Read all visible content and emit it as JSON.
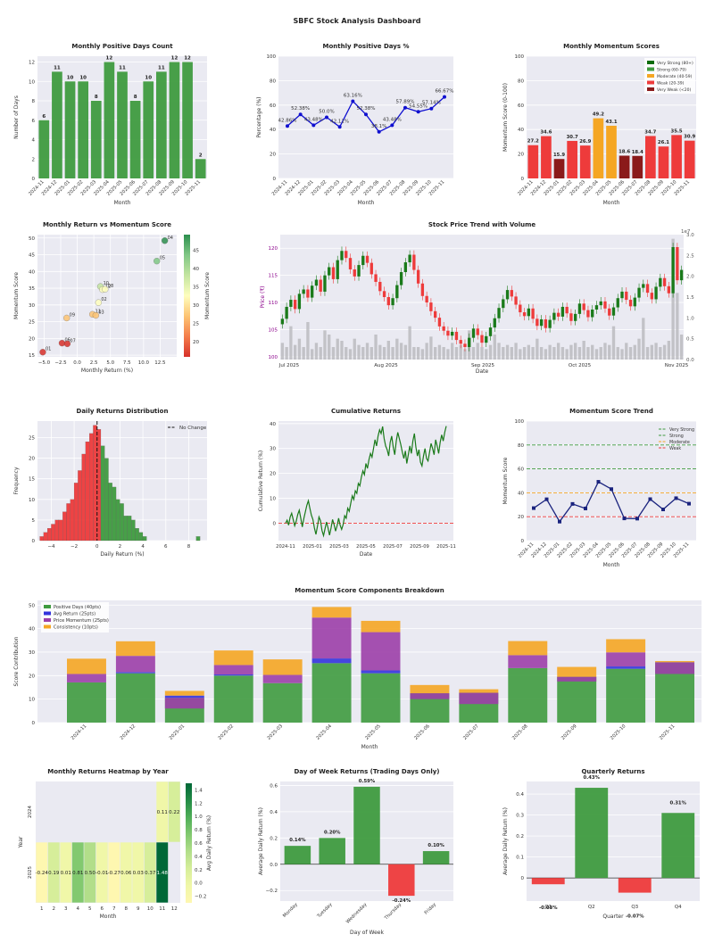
{
  "dashboard_title": "SBFC Stock Analysis Dashboard",
  "colors": {
    "green": "#3f9b3f",
    "red": "#ee3b3b",
    "darkred": "#8b1a1a",
    "orange": "#f5a623",
    "darkgreen": "#1a7a1a",
    "navy": "#1a237e",
    "blue": "#1010d0",
    "purple": "#9c3fa8",
    "panel_bg": "#eaeaf2",
    "volume": "#b8b8bc"
  },
  "chart_data": [
    {
      "id": "positive_days_count",
      "type": "bar",
      "title": "Monthly Positive Days Count",
      "xlabel": "Month",
      "ylabel": "Number of Days",
      "ylim": [
        0,
        12.6
      ],
      "yticks": [
        0,
        2,
        4,
        6,
        8,
        10,
        12
      ],
      "categories": [
        "2024-11",
        "2024-12",
        "2025-01",
        "2025-02",
        "2025-03",
        "2025-04",
        "2025-05",
        "2025-06",
        "2025-07",
        "2025-08",
        "2025-09",
        "2025-10",
        "2025-11"
      ],
      "values": [
        6,
        11,
        10,
        10,
        8,
        12,
        11,
        8,
        10,
        11,
        12,
        12,
        2
      ]
    },
    {
      "id": "positive_days_pct",
      "type": "line",
      "title": "Monthly Positive Days %",
      "xlabel": "Month",
      "ylabel": "Percentage (%)",
      "ylim": [
        0,
        100
      ],
      "yticks": [
        0,
        20,
        40,
        60,
        80,
        100
      ],
      "categories": [
        "2024-11",
        "2024-12",
        "2025-01",
        "2025-02",
        "2025-03",
        "2025-04",
        "2025-05",
        "2025-06",
        "2025-07",
        "2025-08",
        "2025-09",
        "2025-10",
        "2025-11"
      ],
      "values": [
        42.86,
        52.38,
        43.48,
        50.0,
        42.11,
        63.16,
        52.38,
        38.1,
        43.48,
        57.89,
        54.55,
        57.14,
        66.67
      ],
      "labels": [
        "42.86%",
        "52.38%",
        "43.48%",
        "50.0%",
        "42.11%",
        "63.16%",
        "52.38%",
        "38.1%",
        "43.48%",
        "57.89%",
        "54.55%",
        "57.14%",
        "66.67%"
      ]
    },
    {
      "id": "momentum_scores",
      "type": "bar",
      "title": "Monthly Momentum Scores",
      "xlabel": "Month",
      "ylabel": "Momentum Score (0-100)",
      "ylim": [
        0,
        100
      ],
      "yticks": [
        0,
        20,
        40,
        60,
        80,
        100
      ],
      "categories": [
        "2024-11",
        "2024-12",
        "2025-01",
        "2025-02",
        "2025-03",
        "2025-04",
        "2025-05",
        "2025-06",
        "2025-07",
        "2025-08",
        "2025-09",
        "2025-10",
        "2025-11"
      ],
      "values": [
        27.2,
        34.6,
        15.9,
        30.7,
        26.9,
        49.2,
        43.1,
        18.6,
        18.4,
        34.7,
        26.1,
        35.5,
        30.9
      ],
      "legend": [
        {
          "name": "Very Strong (80+)",
          "color": "#0b6b0b"
        },
        {
          "name": "Strong (60-79)",
          "color": "#3f9b3f"
        },
        {
          "name": "Moderate (40-59)",
          "color": "#f5a623"
        },
        {
          "name": "Weak (20-39)",
          "color": "#ee3b3b"
        },
        {
          "name": "Very Weak (<20)",
          "color": "#8b1a1a"
        }
      ],
      "legend_position": "top-right"
    },
    {
      "id": "return_vs_momentum",
      "type": "scatter",
      "title": "Monthly Return vs Momentum Score",
      "xlabel": "Monthly Return (%)",
      "ylabel": "Momentum Score",
      "xlim": [
        -6,
        15
      ],
      "ylim": [
        14.5,
        51
      ],
      "xticks": [
        -5.0,
        -2.5,
        0.0,
        2.5,
        5.0,
        7.5,
        10.0,
        12.5
      ],
      "xtick_labels": [
        "−5.0",
        "−2.5",
        "0.0",
        "2.5",
        "5.0",
        "7.5",
        "10.0",
        "12.5"
      ],
      "yticks": [
        15,
        20,
        25,
        30,
        35,
        40,
        45,
        50
      ],
      "points": [
        {
          "x": -5.2,
          "y": 15.9,
          "label": "01"
        },
        {
          "x": -2.3,
          "y": 18.6,
          "label": "06"
        },
        {
          "x": -1.5,
          "y": 18.4,
          "label": "07"
        },
        {
          "x": 2.3,
          "y": 27.2,
          "label": "11"
        },
        {
          "x": -1.6,
          "y": 26.1,
          "label": "09"
        },
        {
          "x": 2.8,
          "y": 26.9,
          "label": "03"
        },
        {
          "x": 3.2,
          "y": 30.7,
          "label": "02"
        },
        {
          "x": 3.5,
          "y": 35.5,
          "label": "10"
        },
        {
          "x": 3.8,
          "y": 34.6,
          "label": "12"
        },
        {
          "x": 4.2,
          "y": 34.7,
          "label": "08"
        },
        {
          "x": 12.0,
          "y": 43.1,
          "label": "05"
        },
        {
          "x": 13.2,
          "y": 49.2,
          "label": "04"
        }
      ],
      "colorbar": {
        "label": "Momentum Score",
        "ticks": [
          20,
          25,
          30,
          35,
          40,
          45
        ],
        "range": [
          15.9,
          49.2
        ]
      }
    },
    {
      "id": "price_trend",
      "type": "candlestick",
      "title": "Stock Price Trend with Volume",
      "xlabel": "Date",
      "ylabel": "Price (₹)",
      "ylabel_right": "Volume",
      "ylim": [
        99.5,
        122.5
      ],
      "yticks": [
        100,
        105,
        110,
        115,
        120
      ],
      "xtick_labels": [
        "Jul 2025",
        "Aug 2025",
        "Sep 2025",
        "Oct 2025",
        "Nov 2025"
      ],
      "volume_ticks": [
        "0.0",
        "0.5",
        "1.0",
        "1.5",
        "2.0",
        "2.5",
        "3.0"
      ],
      "volume_multiplier": "1e7",
      "closes": [
        107.0,
        109.2,
        110.5,
        108.8,
        111.6,
        112.4,
        110.9,
        113.1,
        114.2,
        112.0,
        115.0,
        116.5,
        114.3,
        117.8,
        119.5,
        118.2,
        116.1,
        114.8,
        116.9,
        118.6,
        117.3,
        115.2,
        113.8,
        112.1,
        111.0,
        109.5,
        110.8,
        113.2,
        115.6,
        117.4,
        118.8,
        116.0,
        113.5,
        111.2,
        110.0,
        108.4,
        107.2,
        105.6,
        104.8,
        103.9,
        104.6,
        103.1,
        102.4,
        101.8,
        103.5,
        105.2,
        104.0,
        102.6,
        103.8,
        105.4,
        107.1,
        109.0,
        110.6,
        112.3,
        111.1,
        109.6,
        108.2,
        107.5,
        108.9,
        107.0,
        105.7,
        106.9,
        105.3,
        106.8,
        108.1,
        107.4,
        109.2,
        108.0,
        106.6,
        107.9,
        109.8,
        108.6,
        107.3,
        108.7,
        109.5,
        110.2,
        108.9,
        107.6,
        109.1,
        110.8,
        112.0,
        110.5,
        109.3,
        110.9,
        112.7,
        113.4,
        111.8,
        110.6,
        112.9,
        114.5,
        113.0,
        111.7,
        120.2,
        114.1,
        116.0
      ],
      "volumes": [
        0.4,
        0.3,
        0.8,
        0.35,
        0.5,
        0.3,
        0.9,
        0.25,
        0.4,
        0.3,
        0.7,
        0.6,
        0.3,
        0.5,
        0.45,
        0.3,
        0.25,
        0.5,
        0.35,
        0.3,
        0.4,
        0.3,
        0.6,
        0.35,
        0.3,
        0.45,
        0.3,
        0.5,
        0.4,
        0.35,
        0.8,
        0.3,
        0.3,
        0.25,
        0.4,
        0.55,
        0.3,
        0.35,
        0.3,
        0.25,
        0.4,
        0.3,
        0.35,
        0.25,
        0.7,
        0.3,
        0.4,
        0.3,
        0.25,
        0.35,
        0.6,
        0.4,
        0.3,
        0.35,
        0.3,
        0.4,
        0.25,
        0.3,
        0.35,
        0.3,
        0.5,
        0.3,
        0.25,
        0.35,
        0.3,
        0.4,
        0.3,
        0.25,
        0.35,
        0.4,
        0.3,
        0.45,
        0.3,
        0.35,
        0.25,
        0.3,
        0.4,
        0.35,
        0.8,
        0.3,
        0.25,
        0.4,
        0.3,
        0.35,
        0.5,
        1.0,
        0.3,
        0.35,
        0.4,
        0.3,
        0.35,
        0.45,
        2.9,
        1.6,
        0.6
      ]
    },
    {
      "id": "daily_returns_dist",
      "type": "histogram",
      "title": "Daily Returns Distribution",
      "xlabel": "Daily Return (%)",
      "ylabel": "Frequency",
      "xlim": [
        -5.2,
        9.6
      ],
      "ylim": [
        0,
        29
      ],
      "xticks": [
        -4,
        -2,
        0,
        2,
        4,
        6,
        8
      ],
      "xtick_labels": [
        "−4",
        "−2",
        "0",
        "2",
        "4",
        "6",
        "8"
      ],
      "yticks": [
        0,
        5,
        10,
        15,
        20,
        25
      ],
      "bin_width": 0.333,
      "bins_start": -5.0,
      "counts": [
        1,
        2,
        3,
        4,
        5,
        5,
        7,
        9,
        10,
        14,
        17,
        21,
        24,
        26,
        28,
        27,
        23,
        20,
        14,
        13,
        10,
        9,
        6,
        6,
        5,
        3,
        2,
        1,
        0,
        0,
        0,
        0,
        0,
        0,
        0,
        0,
        0,
        0,
        0,
        0,
        0,
        1
      ],
      "annotation": "No Change",
      "legend_position": "top-right"
    },
    {
      "id": "cumulative_returns",
      "type": "line",
      "title": "Cumulative Returns",
      "xlabel": "Date",
      "ylabel": "Cumulative Return (%)",
      "ylim": [
        -7,
        41
      ],
      "yticks": [
        0,
        10,
        20,
        30,
        40
      ],
      "xtick_labels": [
        "2024-11",
        "2025-01",
        "2025-03",
        "2025-05",
        "2025-07",
        "2025-09",
        "2025-11"
      ],
      "values": [
        0,
        1.2,
        -0.8,
        2.5,
        4.0,
        1.5,
        -1.0,
        0.8,
        3.5,
        5.2,
        2.0,
        -1.5,
        1.8,
        4.5,
        7.2,
        9.0,
        6.0,
        3.2,
        1.5,
        -2.0,
        -4.5,
        -1.2,
        2.5,
        1.0,
        -3.0,
        -5.0,
        -2.2,
        0.5,
        -1.8,
        -4.8,
        -2.0,
        1.5,
        -0.5,
        -3.2,
        -1.0,
        2.0,
        -0.8,
        -2.5,
        -0.5,
        3.0,
        2.0,
        6.0,
        4.8,
        8.0,
        11.0,
        9.5,
        13.0,
        12.0,
        16.0,
        15.0,
        18.5,
        21.0,
        19.5,
        24.0,
        22.0,
        25.5,
        28.0,
        26.5,
        30.0,
        33.5,
        31.0,
        35.0,
        37.5,
        36.0,
        38.8,
        34.0,
        31.0,
        29.5,
        27.0,
        32.5,
        35.0,
        30.5,
        27.5,
        33.0,
        36.5,
        34.0,
        31.5,
        28.5,
        26.0,
        29.0,
        24.0,
        27.5,
        31.0,
        28.0,
        33.0,
        36.0,
        30.5,
        27.0,
        29.5,
        24.5,
        23.0,
        27.0,
        30.0,
        26.0,
        25.0,
        28.5,
        32.0,
        30.0,
        27.5,
        33.5,
        31.0,
        28.0,
        32.5,
        35.5,
        33.0,
        36.5,
        39.0
      ],
      "reference_line": 0
    },
    {
      "id": "momentum_trend",
      "type": "line",
      "title": "Momentum Score Trend",
      "xlabel": "Month",
      "ylabel": "Momentum Score",
      "ylim": [
        0,
        100
      ],
      "yticks": [
        0,
        20,
        40,
        60,
        80,
        100
      ],
      "categories": [
        "2024-11",
        "2024-12",
        "2025-01",
        "2025-02",
        "2025-03",
        "2025-04",
        "2025-05",
        "2025-06",
        "2025-07",
        "2025-08",
        "2025-09",
        "2025-10",
        "2025-11"
      ],
      "values": [
        27.2,
        34.6,
        15.9,
        30.7,
        26.9,
        49.2,
        43.1,
        18.6,
        18.4,
        34.7,
        26.1,
        35.5,
        30.9
      ],
      "thresholds": [
        {
          "name": "Very Strong",
          "value": 80,
          "color": "#3f9b3f"
        },
        {
          "name": "Strong",
          "value": 60,
          "color": "#3f9b3f"
        },
        {
          "name": "Moderate",
          "value": 40,
          "color": "#f5a623"
        },
        {
          "name": "Weak",
          "value": 20,
          "color": "#ee3b3b"
        }
      ],
      "legend_position": "top-right"
    },
    {
      "id": "score_components",
      "type": "bar",
      "stacked": true,
      "title": "Momentum Score Components Breakdown",
      "xlabel": "Month",
      "ylabel": "Score Contribution",
      "ylim": [
        0,
        52
      ],
      "yticks": [
        0,
        10,
        20,
        30,
        40,
        50
      ],
      "categories": [
        "2024-11",
        "2024-12",
        "2025-01",
        "2025-02",
        "2025-03",
        "2025-04",
        "2025-05",
        "2025-06",
        "2025-07",
        "2025-08",
        "2025-09",
        "2025-10",
        "2025-11"
      ],
      "series": [
        {
          "name": "Positive Days (40pts)",
          "color": "#3f9b3f",
          "values": [
            17.1,
            21.0,
            10.5,
            20.0,
            16.8,
            25.3,
            21.0,
            12.5,
            12.7,
            23.2,
            19.5,
            22.9,
            25.7
          ]
        },
        {
          "name": "Avg Return (25pts)",
          "color": "#3333dd",
          "values": [
            0.0,
            0.5,
            1.0,
            0.5,
            0.0,
            2.0,
            1.2,
            0.0,
            0.0,
            0.0,
            0.0,
            1.0,
            0.0
          ]
        },
        {
          "name": "Price Momentum (25pts)",
          "color": "#9c3fa8",
          "values": [
            3.6,
            6.9,
            -4.5,
            4.0,
            3.5,
            17.4,
            16.3,
            -2.5,
            -4.8,
            5.5,
            -2.0,
            6.0,
            -5.0
          ]
        },
        {
          "name": "Consistency (10pts)",
          "color": "#f5a623",
          "values": [
            6.5,
            6.2,
            2.0,
            6.2,
            6.6,
            4.5,
            4.8,
            3.5,
            1.5,
            6.0,
            4.2,
            5.6,
            0.5
          ]
        }
      ],
      "legend_position": "top-left"
    },
    {
      "id": "returns_heatmap",
      "type": "heatmap",
      "title": "Monthly Returns Heatmap by Year",
      "xlabel": "Month",
      "ylabel": "Year",
      "rows": [
        "2024",
        "2025"
      ],
      "cols": [
        "1",
        "2",
        "3",
        "4",
        "5",
        "6",
        "7",
        "8",
        "9",
        "10",
        "11",
        "12"
      ],
      "values": [
        [
          null,
          null,
          null,
          null,
          null,
          null,
          null,
          null,
          null,
          null,
          0.11,
          0.22
        ],
        [
          -0.24,
          0.19,
          0.01,
          0.81,
          0.5,
          -0.01,
          -0.27,
          0.06,
          0.03,
          0.37,
          1.48,
          null
        ]
      ],
      "labels": [
        [
          "",
          "",
          "",
          "",
          "",
          "",
          "",
          "",
          "",
          "",
          "0.11",
          "0.22"
        ],
        [
          "-0.24",
          "0.19",
          "0.01",
          "0.81",
          "0.50",
          "-0.01",
          "-0.27",
          "0.06",
          "0.03",
          "0.37",
          "1.48",
          ""
        ]
      ],
      "colorbar": {
        "label": "Avg Daily Return (%)",
        "ticks": [
          -0.2,
          0.0,
          0.2,
          0.4,
          0.6,
          0.8,
          1.0,
          1.2,
          1.4
        ],
        "tick_labels": [
          "−0.2",
          "0.0",
          "0.2",
          "0.4",
          "0.6",
          "0.8",
          "1.0",
          "1.2",
          "1.4"
        ],
        "range": [
          -0.3,
          1.5
        ]
      }
    },
    {
      "id": "day_of_week",
      "type": "bar",
      "title": "Day of Week Returns (Trading Days Only)",
      "xlabel": "Day of Week",
      "ylabel": "Average Daily Return (%)",
      "ylim": [
        -0.28,
        0.63
      ],
      "yticks": [
        -0.2,
        0.0,
        0.2,
        0.4,
        0.6
      ],
      "ytick_labels": [
        "−0.2",
        "0.0",
        "0.2",
        "0.4",
        "0.6"
      ],
      "categories": [
        "Monday",
        "Tuesday",
        "Wednesday",
        "Thursday",
        "Friday"
      ],
      "values": [
        0.14,
        0.2,
        0.59,
        -0.24,
        0.1
      ],
      "labels": [
        "0.14%",
        "0.20%",
        "0.59%",
        "-0.24%",
        "0.10%"
      ]
    },
    {
      "id": "quarterly_returns",
      "type": "bar",
      "title": "Quarterly Returns",
      "xlabel": "Quarter",
      "ylabel": "Average Daily Return (%)",
      "ylim": [
        -0.11,
        0.46
      ],
      "yticks": [
        0.0,
        0.1,
        0.2,
        0.3,
        0.4
      ],
      "categories": [
        "Q1",
        "Q2",
        "Q3",
        "Q4"
      ],
      "values": [
        -0.03,
        0.43,
        -0.07,
        0.31
      ],
      "labels": [
        "-0.03%",
        "0.43%",
        "-0.07%",
        "0.31%"
      ]
    }
  ]
}
